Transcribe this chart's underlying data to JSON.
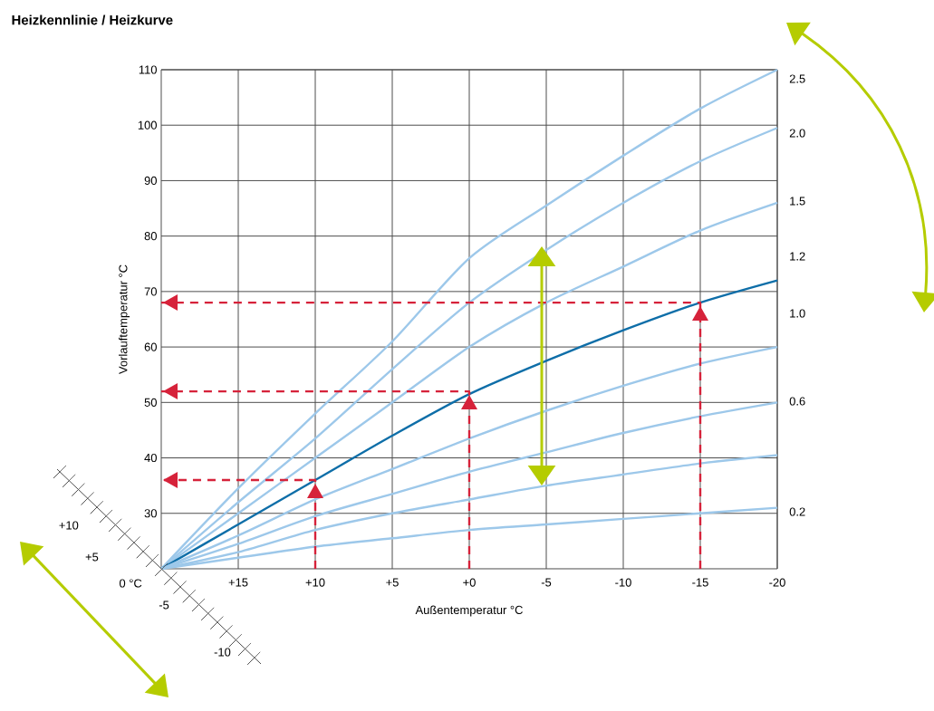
{
  "chart_data": {
    "type": "line",
    "title": "Heizkennlinie / Heizkurve",
    "xlabel": "Außentemperatur °C",
    "ylabel": "Vorlauftemperatur °C",
    "x": [
      20,
      15,
      10,
      5,
      0,
      -5,
      -10,
      -15,
      -20
    ],
    "xlim": [
      20,
      -20
    ],
    "ylim": [
      20,
      110
    ],
    "xticks": [
      {
        "value": 15,
        "label": "+15"
      },
      {
        "value": 10,
        "label": "+10"
      },
      {
        "value": 5,
        "label": "+5"
      },
      {
        "value": 0,
        "label": "+0"
      },
      -5,
      -10,
      -15,
      -20
    ],
    "yticks": [
      30,
      40,
      50,
      60,
      70,
      80,
      90,
      100,
      110
    ],
    "grid": true,
    "marker": "none",
    "line_style": "solid",
    "series": [
      {
        "color": "#9dc8ea",
        "values": [
          20,
          34.5,
          48,
          61,
          76,
          85.5,
          94.5,
          103,
          110
        ]
      },
      {
        "color": "#9dc8ea",
        "values": [
          20,
          32,
          43.5,
          56,
          68,
          77.5,
          86,
          93.5,
          99.5
        ]
      },
      {
        "color": "#9dc8ea",
        "values": [
          20,
          30,
          40,
          50,
          60,
          68,
          74.5,
          81,
          86
        ]
      },
      {
        "color": "#0e6ea8",
        "values": [
          20,
          28,
          36,
          44,
          51.5,
          57.5,
          63,
          68,
          72
        ]
      },
      {
        "color": "#9dc8ea",
        "values": [
          20,
          26,
          32.5,
          38,
          43.5,
          48.5,
          53,
          57,
          60
        ]
      },
      {
        "color": "#9dc8ea",
        "values": [
          20,
          24.5,
          29.5,
          33.5,
          37.5,
          41,
          44.5,
          47.5,
          50
        ]
      },
      {
        "color": "#9dc8ea",
        "values": [
          20,
          23,
          27,
          30,
          32.5,
          35,
          37,
          39,
          40.5
        ]
      },
      {
        "color": "#9dc8ea",
        "values": [
          20,
          22,
          24,
          25.5,
          27,
          28,
          29,
          30,
          31
        ]
      },
      {
        "color": "#d6223a",
        "line_style": "dashed",
        "x": [
          10,
          10,
          20
        ],
        "values": [
          20,
          36,
          36
        ]
      },
      {
        "color": "#d6223a",
        "line_style": "dashed",
        "x": [
          0,
          0,
          20
        ],
        "values": [
          20,
          52,
          52
        ]
      },
      {
        "color": "#d6223a",
        "line_style": "dashed",
        "x": [
          -15,
          -15,
          20
        ],
        "values": [
          20,
          68,
          68
        ]
      }
    ],
    "annotations": [
      "2.5",
      "2.0",
      "1.5",
      "1.2",
      "1.0",
      "0.6",
      "0.2",
      "+10",
      "+5",
      "0 °C",
      "-5",
      "-10"
    ]
  }
}
